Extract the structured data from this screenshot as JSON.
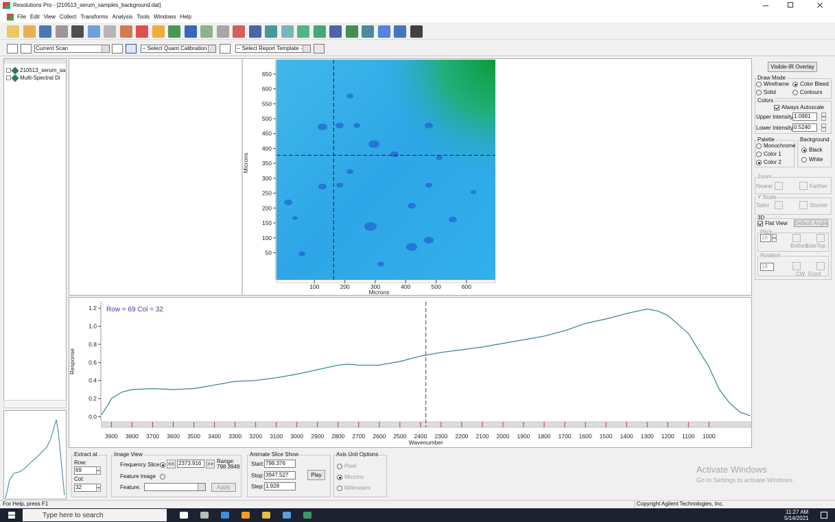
{
  "window": {
    "title": "Resolutions Pro - [210513_serum_samples_background.dat]"
  },
  "menu": [
    "File",
    "Edit",
    "View",
    "Collect",
    "Transforms",
    "Analysis",
    "Tools",
    "Windows",
    "Help"
  ],
  "toolbar": {
    "scan": "Current Scan",
    "quant": "-- Select Quant Calibration --",
    "report": "-- Select Report Template --"
  },
  "tree": [
    "210513_serum_sa",
    "Multi-Spectral Di"
  ],
  "chart_data": [
    {
      "type": "image",
      "xlabel": "Microns",
      "ylabel": "Microns",
      "xlim": [
        -25,
        695
      ],
      "ylim": [
        -41,
        698
      ],
      "xticks": [
        100,
        200,
        300,
        400,
        500,
        600
      ],
      "yticks": [
        50,
        100,
        150,
        200,
        250,
        300,
        350,
        400,
        450,
        500,
        550,
        600,
        650
      ],
      "crosshair": {
        "x": 163,
        "y": 377
      }
    },
    {
      "type": "line",
      "annotation": "Row = 69 Col = 32",
      "xlabel": "Wavenumber",
      "ylabel": "Response",
      "x": [
        3948,
        3920,
        3900,
        3850,
        3800,
        3700,
        3600,
        3500,
        3400,
        3300,
        3200,
        3100,
        3000,
        2900,
        2800,
        2750,
        2700,
        2600,
        2500,
        2400,
        2300,
        2200,
        2100,
        2000,
        1900,
        1800,
        1700,
        1600,
        1500,
        1400,
        1300,
        1250,
        1200,
        1100,
        1000,
        950,
        900,
        850,
        800
      ],
      "series": [
        {
          "name": "Response",
          "color": "#2f7f93",
          "values": [
            0.02,
            0.12,
            0.2,
            0.27,
            0.3,
            0.31,
            0.3,
            0.31,
            0.35,
            0.39,
            0.4,
            0.43,
            0.47,
            0.52,
            0.57,
            0.58,
            0.57,
            0.57,
            0.61,
            0.67,
            0.71,
            0.74,
            0.77,
            0.81,
            0.85,
            0.89,
            0.95,
            1.03,
            1.08,
            1.14,
            1.19,
            1.17,
            1.12,
            0.92,
            0.55,
            0.3,
            0.15,
            0.05,
            0.01
          ]
        }
      ],
      "xlim": [
        3948,
        798
      ],
      "ylim": [
        -0.05,
        1.27
      ],
      "xticks": [
        3900,
        3800,
        3700,
        3600,
        3500,
        3400,
        3300,
        3200,
        3100,
        3000,
        2900,
        2800,
        2700,
        2600,
        2500,
        2400,
        2300,
        2200,
        2100,
        2000,
        1900,
        1800,
        1700,
        1600,
        1500,
        1400,
        1300,
        1200,
        1100,
        1000
      ],
      "yticks": [
        {
          "value": 0,
          "label": "0.0"
        },
        0.2,
        0.4,
        0.6,
        0.8,
        {
          "value": 1,
          "label": "1.0"
        },
        1.2
      ],
      "cursor": 2373.916
    }
  ],
  "right_panel": {
    "overlay_button": "Visible-IR Overlay",
    "draw_mode": {
      "title": "Draw Mode",
      "options": [
        "Wireframe",
        "Color Bleed",
        "Solid",
        "Contours"
      ],
      "checked": [
        false,
        true,
        false,
        false
      ]
    },
    "colors": {
      "title": "Colors",
      "autoscale": "Always Autoscale",
      "autoscale_checked": true,
      "upper_label": "Upper Intensity",
      "upper": "1.0981",
      "lower_label": "Lower Intensity",
      "lower": "0.5240"
    },
    "palette": {
      "title": "Palette",
      "options": [
        "Monochrome",
        "Color 1",
        "Color 2"
      ],
      "checked": [
        false,
        false,
        true
      ]
    },
    "background": {
      "title": "Background",
      "options": [
        "Black",
        "White"
      ],
      "checked": [
        true,
        false
      ]
    },
    "zoom": {
      "title": "Zoom",
      "near": "Nearer",
      "far": "Farther"
    },
    "yscale": {
      "title": "Y Scale",
      "taller": "Taller",
      "shorter": "Shorter"
    },
    "three_d": {
      "title": "3D",
      "flat": "Flat View",
      "flat_checked": true,
      "default_angle": "Default Angle",
      "pitch_title": "Pitch",
      "pitch": "18",
      "pitch_labels": [
        "Bottom",
        "Side",
        "Top"
      ],
      "rotation_title": "Rotation",
      "rotation": "18",
      "rotation_labels": [
        "CW",
        "Front"
      ]
    }
  },
  "bottom": {
    "extract": {
      "title": "Extract at",
      "row_label": "Row:",
      "row": "69",
      "col_label": "Col:",
      "col": "32"
    },
    "image_view": {
      "title": "Image View",
      "freq_label": "Frequency Slice",
      "freq_checked": true,
      "prev": "<<",
      "slice": "2373.916",
      "next": ">>",
      "range_label": "Range:",
      "range": "798 3948",
      "feature_image": "Feature Image",
      "feature_label": "Feature:",
      "apply": "Apply"
    },
    "animate": {
      "title": "Animate Slice Show",
      "start_label": "Start:",
      "start": "798.376",
      "stop_label": "Stop:",
      "stop": "3947.527",
      "step_label": "Step:",
      "step": "1.928",
      "play": "Play"
    },
    "axis_units": {
      "title": "Axis Unit Options",
      "options": [
        "Pixel",
        "Microns",
        "Millimeters"
      ],
      "checked": [
        false,
        true,
        false
      ]
    }
  },
  "watermark": {
    "title": "Activate Windows",
    "text": "Go to Settings to activate Windows."
  },
  "status": {
    "help": "For Help, press F1",
    "copyright": "Copyright Agilent Technologies, Inc."
  },
  "taskbar": {
    "search": "Type here to search",
    "time": "11:27 AM",
    "date": "5/14/2021"
  }
}
